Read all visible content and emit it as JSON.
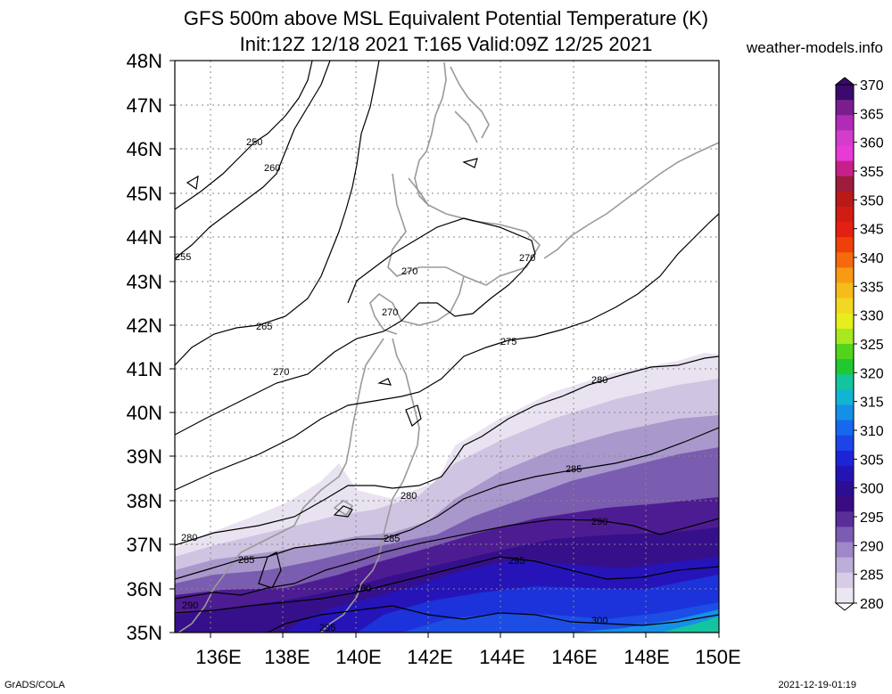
{
  "title_line1": "GFS 500m above MSL Equivalent Potential Temperature (K)",
  "title_line2": "Init:12Z 12/18 2021 T:165 Valid:09Z 12/25 2021",
  "credit": "weather-models.info",
  "footer_left": "GrADS/COLA",
  "footer_right": "2021-12-19-01:19",
  "lat_labels": [
    "48N",
    "47N",
    "46N",
    "45N",
    "44N",
    "43N",
    "42N",
    "41N",
    "40N",
    "39N",
    "38N",
    "37N",
    "36N",
    "35N"
  ],
  "lon_labels": [
    "136E",
    "138E",
    "140E",
    "142E",
    "144E",
    "146E",
    "148E",
    "150E"
  ],
  "colorbar": {
    "labels": [
      "370",
      "365",
      "360",
      "355",
      "350",
      "345",
      "340",
      "335",
      "330",
      "325",
      "320",
      "315",
      "310",
      "305",
      "300",
      "295",
      "290",
      "285",
      "280"
    ],
    "colors": [
      "#3a0a6e",
      "#7a1e8e",
      "#b02bb8",
      "#d43ccc",
      "#e83ad6",
      "#c8208a",
      "#9c1c3c",
      "#b81a1a",
      "#d01c12",
      "#e42010",
      "#f0400a",
      "#f46a0c",
      "#f89a12",
      "#f6bc1a",
      "#f2d820",
      "#e8ee1e",
      "#a8e81e",
      "#52d41c",
      "#20c832",
      "#14c49a",
      "#12b4d4",
      "#1490e6",
      "#1668ec",
      "#1c44e6",
      "#1c24d8",
      "#2414b4",
      "#2c0e94",
      "#3a0c82",
      "#5a2e9a",
      "#7c5cb2",
      "#9e88c8",
      "#bcaed8",
      "#d6cce6",
      "#ebe6f2"
    ]
  },
  "contour_labels": [
    {
      "text": "250"
    },
    {
      "text": "260"
    },
    {
      "text": "255"
    },
    {
      "text": "270"
    },
    {
      "text": "270"
    },
    {
      "text": "270"
    },
    {
      "text": "265"
    },
    {
      "text": "275"
    },
    {
      "text": "270"
    },
    {
      "text": "280"
    },
    {
      "text": "285"
    },
    {
      "text": "280"
    },
    {
      "text": "290"
    },
    {
      "text": "280"
    },
    {
      "text": "285"
    },
    {
      "text": "285"
    },
    {
      "text": "295"
    },
    {
      "text": "290"
    },
    {
      "text": "290"
    },
    {
      "text": "295"
    },
    {
      "text": "300"
    }
  ],
  "map": {
    "lat_range": [
      35,
      48
    ],
    "lon_range": [
      135,
      150
    ],
    "shading_colors": {
      "c280": "#e7e1f0",
      "c285": "#bdb0d8",
      "c288": "#8f78bc",
      "c290": "#5a2e9a",
      "c292": "#3c0e88",
      "c295": "#2414b4",
      "c298": "#1c2ed8",
      "c300": "#1c44e6",
      "c303": "#1690e8",
      "c306": "#14c49a"
    }
  }
}
